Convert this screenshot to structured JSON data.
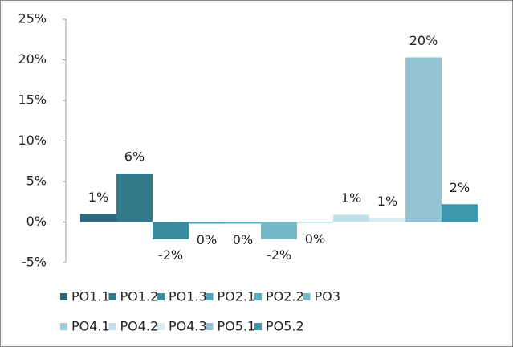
{
  "chart_data": {
    "type": "bar",
    "categories": [
      null
    ],
    "series": [
      {
        "name": "PO1.1",
        "color": "#2e6a7f",
        "values": [
          1.0
        ],
        "value_labels": [
          "1%"
        ]
      },
      {
        "name": "PO1.2",
        "color": "#32798c",
        "values": [
          6.0
        ],
        "value_labels": [
          "6%"
        ]
      },
      {
        "name": "PO1.3",
        "color": "#3a8a9e",
        "values": [
          -2.1
        ],
        "value_labels": [
          "-2%"
        ]
      },
      {
        "name": "PO2.1",
        "color": "#4aa3bd",
        "values": [
          -0.2
        ],
        "value_labels": [
          "0%"
        ]
      },
      {
        "name": "PO2.2",
        "color": "#4db3cc",
        "values": [
          -0.2
        ],
        "value_labels": [
          "0%"
        ]
      },
      {
        "name": "PO3",
        "color": "#74b9cb",
        "values": [
          -2.1
        ],
        "value_labels": [
          "-2%"
        ]
      },
      {
        "name": "PO4.1",
        "color": "#9ccfdc",
        "values": [
          -0.1
        ],
        "value_labels": [
          "0%"
        ]
      },
      {
        "name": "PO4.2",
        "color": "#c2e0e9",
        "values": [
          0.9
        ],
        "value_labels": [
          "1%"
        ]
      },
      {
        "name": "PO4.3",
        "color": "#d9eaf0",
        "values": [
          0.5
        ],
        "value_labels": [
          "1%"
        ]
      },
      {
        "name": "PO5.1",
        "color": "#93c4d4",
        "values": [
          20.3
        ],
        "value_labels": [
          "20%"
        ]
      },
      {
        "name": "PO5.2",
        "color": "#3d97ad",
        "values": [
          2.2
        ],
        "value_labels": [
          "2%"
        ]
      }
    ],
    "ylim": [
      -5,
      25
    ],
    "yticks": [
      {
        "value": -5,
        "label": "-5%"
      },
      {
        "value": 0,
        "label": "0%"
      },
      {
        "value": 5,
        "label": "5%"
      },
      {
        "value": 10,
        "label": "10%"
      },
      {
        "value": 15,
        "label": "15%"
      },
      {
        "value": 20,
        "label": "20%"
      },
      {
        "value": 25,
        "label": "25%"
      }
    ],
    "grid": false,
    "legend": "bottom"
  }
}
